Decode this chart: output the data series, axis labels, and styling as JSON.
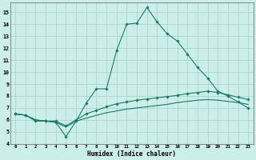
{
  "title": "",
  "xlabel": "Humidex (Indice chaleur)",
  "ylabel": "",
  "background_color": "#cceee8",
  "grid_color": "#aad4ce",
  "line_color": "#1a7a6e",
  "xlim": [
    -0.5,
    23.5
  ],
  "ylim": [
    4,
    15.8
  ],
  "xticks": [
    0,
    1,
    2,
    3,
    4,
    5,
    6,
    7,
    8,
    9,
    10,
    11,
    12,
    13,
    14,
    15,
    16,
    17,
    18,
    19,
    20,
    21,
    22,
    23
  ],
  "yticks": [
    4,
    5,
    6,
    7,
    8,
    9,
    10,
    11,
    12,
    13,
    14,
    15
  ],
  "line1_x": [
    0,
    1,
    2,
    3,
    4,
    5,
    6,
    7,
    8,
    9,
    10,
    11,
    12,
    13,
    14,
    15,
    16,
    17,
    18,
    19,
    20,
    21,
    22,
    23
  ],
  "line1_y": [
    6.5,
    6.4,
    5.9,
    5.9,
    5.8,
    4.6,
    5.9,
    7.4,
    8.6,
    8.6,
    11.8,
    14.0,
    14.1,
    15.4,
    14.2,
    13.2,
    12.6,
    11.5,
    10.4,
    9.5,
    8.4,
    8.0,
    7.5,
    7.0
  ],
  "line2_x": [
    0,
    1,
    2,
    3,
    4,
    5,
    6,
    7,
    8,
    9,
    10,
    11,
    12,
    13,
    14,
    15,
    16,
    17,
    18,
    19,
    20,
    21,
    22,
    23
  ],
  "line2_y": [
    6.5,
    6.4,
    6.0,
    5.9,
    5.9,
    5.5,
    6.0,
    6.5,
    6.8,
    7.1,
    7.35,
    7.5,
    7.65,
    7.75,
    7.85,
    7.95,
    8.05,
    8.2,
    8.3,
    8.4,
    8.3,
    8.1,
    7.9,
    7.7
  ],
  "line3_x": [
    0,
    1,
    2,
    3,
    4,
    5,
    6,
    7,
    8,
    9,
    10,
    11,
    12,
    13,
    14,
    15,
    16,
    17,
    18,
    19,
    20,
    21,
    22,
    23
  ],
  "line3_y": [
    6.5,
    6.4,
    6.0,
    5.9,
    5.8,
    5.4,
    5.9,
    6.15,
    6.38,
    6.6,
    6.75,
    6.9,
    7.0,
    7.1,
    7.2,
    7.3,
    7.45,
    7.55,
    7.65,
    7.7,
    7.65,
    7.55,
    7.45,
    7.3
  ]
}
